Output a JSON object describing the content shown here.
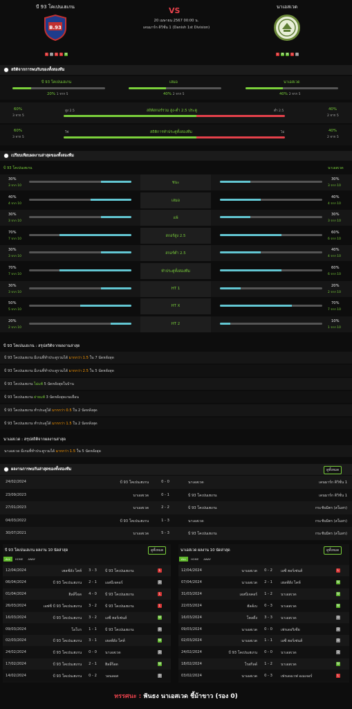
{
  "header": {
    "home": "บี 93 โคเปนเฮเกน",
    "away": "นาเอสเวด",
    "vs": "VS",
    "date": "20 เมษายน 2567 00:00 น.",
    "league": "เดนมาร์ก ดิวิชั่น 1 (Danish 1st Division)",
    "home_form": [
      "L",
      "D",
      "L",
      "L",
      "W"
    ],
    "away_form": [
      "L",
      "W",
      "W",
      "L",
      "D"
    ],
    "home_logo_text": "B.93"
  },
  "stats": {
    "title": "สถิติจากการพบกันของทั้งสองทีม",
    "home_label": "บี 93 โคเปนเฮเกน",
    "draw_label": "เสมอ",
    "away_label": "นาเอสเวด",
    "home_pct": "20%",
    "home_cnt": "1 จาก 5",
    "draw_pct": "40%",
    "draw_cnt": "2 จาก 5",
    "away_pct": "40%",
    "away_cnt": "2 จาก 5",
    "home_fill": 0.2,
    "draw_fill": 0.4,
    "away_fill": 0.4
  },
  "ou": {
    "left_pct": "60%",
    "left_cnt": "3 จาก 5",
    "under": "สูง 2.5",
    "title": "สถิติสกอร์รวม สูง-ต่ำ 2.5 ประตู",
    "over": "ต่ำ 2.5",
    "right_pct": "40%",
    "right_cnt": "2 จาก 5",
    "fill": 0.6
  },
  "btts": {
    "left_pct": "60%",
    "left_cnt": "3 จาก 5",
    "yes": "ใช่",
    "title": "สถิติการทำประตูทั้งสองทีม",
    "no": "ไม่",
    "right_pct": "40%",
    "right_cnt": "2 จาก 5",
    "fill": 0.6
  },
  "compare": {
    "title": "เปรียบเทียบผลงานล่าสุดของทั้งสองทีม",
    "home": "บี 93 โคเปนเฮเกน",
    "away": "นาเอสเวด",
    "rows": [
      {
        "label": "ชนะ",
        "hp": "30%",
        "hc": "3 จาก 10",
        "hf": 0.3,
        "ap": "30%",
        "ac": "3 จาก 10",
        "af": 0.3
      },
      {
        "label": "เสมอ",
        "hp": "40%",
        "hc": "4 จาก 10",
        "hf": 0.4,
        "ap": "40%",
        "ac": "4 จาก 10",
        "af": 0.4
      },
      {
        "label": "แพ้",
        "hp": "30%",
        "hc": "3 จาก 10",
        "hf": 0.3,
        "ap": "30%",
        "ac": "3 จาก 10",
        "af": 0.3
      },
      {
        "label": "สกอร์สูง 2.5",
        "hp": "70%",
        "hc": "7 จาก 10",
        "hf": 0.7,
        "ap": "60%",
        "ac": "6 จาก 10",
        "af": 0.6
      },
      {
        "label": "สกอร์ต่ำ 2.5",
        "hp": "30%",
        "hc": "3 จาก 10",
        "hf": 0.3,
        "ap": "40%",
        "ac": "4 จาก 10",
        "af": 0.4
      },
      {
        "label": "ทำประตูทั้งสองทีม",
        "hp": "70%",
        "hc": "7 จาก 10",
        "hf": 0.7,
        "ap": "60%",
        "ac": "6 จาก 10",
        "af": 0.6
      },
      {
        "label": "HT 1",
        "hp": "30%",
        "hc": "3 จาก 10",
        "hf": 0.3,
        "ap": "20%",
        "ac": "2 จาก 10",
        "af": 0.2
      },
      {
        "label": "HT X",
        "hp": "50%",
        "hc": "5 จาก 10",
        "hf": 0.5,
        "ap": "70%",
        "ac": "7 จาก 10",
        "af": 0.7
      },
      {
        "label": "HT 2",
        "hp": "20%",
        "hc": "2 จาก 10",
        "hf": 0.2,
        "ap": "10%",
        "ac": "1 จาก 10",
        "af": 0.1
      }
    ]
  },
  "home_summary": {
    "title": "บี 93 โคเปนเฮเกน : สรุปสถิติจากผลงานล่าสุด",
    "lines": [
      {
        "pre": "บี 93 โคเปนเฮเกน  มีเกมที่ทำประตูรวมได้ ",
        "hl": "มากกว่า 1.5",
        "post": " ใน 7 นัดหลังสุด",
        "hc": "orange"
      },
      {
        "pre": "บี 93 โคเปนเฮเกน  มีเกมที่ทำประตูรวมได้ ",
        "hl": "มากกว่า 2.5",
        "post": " ใน 5 นัดหลังสุด",
        "hc": "orange"
      },
      {
        "pre": "บี 93 โคเปนเฮเกน  ",
        "hl": "ไม่แพ้",
        "post": " 5 นัดหลังสุดในบ้าน",
        "hc": "green"
      },
      {
        "pre": "บี 93 โคเปนเฮเกน  ",
        "hl": "ผ่ายแพ้",
        "post": " 3 นัดหลังสุดเกมเยือน",
        "hc": "green"
      },
      {
        "pre": "บี 93 โคเปนเฮเกน  ทำประตูได้ ",
        "hl": "มากกว่า 0.5",
        "post": " ใน 2 นัดหลังสุด",
        "hc": "orange"
      },
      {
        "pre": "บี 93 โคเปนเฮเกน  ทำประตูได้ ",
        "hl": "มากกว่า 1.5",
        "post": " ใน 2 นัดหลังสุด",
        "hc": "orange"
      }
    ]
  },
  "away_summary": {
    "title": "นาเอสเวด : สรุปสถิติจากผลงานล่าสุด",
    "lines": [
      {
        "pre": "นาเอสเวด  มีเกมที่ทำประตูรวมได้ ",
        "hl": "มากกว่า 1.5",
        "post": " ใน 5 นัดหลังสุด",
        "hc": "orange"
      }
    ]
  },
  "h2h": {
    "title": "ผลงานการพบกันล่าสุดของทั้งสองทีม",
    "button": "ดูทั้งหมด",
    "rows": [
      {
        "date": "24/02/2024",
        "home": "บี 93 โคเปนเฮเกน",
        "score": "0 - 0",
        "away": "นาเอสเวด",
        "comp": "เดนมาร์ก ดิวิชั่น 1"
      },
      {
        "date": "23/09/2023",
        "home": "นาเอสเวด",
        "score": "0 - 1",
        "away": "บี 93 โคเปนเฮเกน",
        "comp": "เดนมาร์ก ดิวิชั่น 1"
      },
      {
        "date": "27/01/2023",
        "home": "นาเอสเวด",
        "score": "2 - 2",
        "away": "บี 93 โคเปนเฮเกน",
        "comp": "กระชับมิตร (สโมสร)"
      },
      {
        "date": "04/03/2022",
        "home": "บี 93 โคเปนเฮเกน",
        "score": "1 - 3",
        "away": "นาเอสเวด",
        "comp": "กระชับมิตร (สโมสร)"
      },
      {
        "date": "30/07/2021",
        "home": "นาเอสเวด",
        "score": "5 - 3",
        "away": "บี 93 โคเปนเฮเกน",
        "comp": "กระชับมิตร (สโมสร)"
      }
    ]
  },
  "last_home": {
    "title": "บี 93 โคเปนเฮเกน ผลงาน 10 นัดล่าสุด",
    "button": "ดูทั้งหมด",
    "tabs": [
      "ALL",
      "HOME",
      "AWAY"
    ],
    "rows": [
      {
        "date": "12/04/2024",
        "home": "เฮลฟ์ลัง ไคท์",
        "score": "3 - 3",
        "away": "บี 93 โคเปนเฮเกน",
        "r": "L"
      },
      {
        "date": "06/04/2024",
        "home": "บี 93 โคเปนเฮเกน",
        "score": "2 - 1",
        "away": "เอสบีเจคอร์",
        "r": "D"
      },
      {
        "date": "01/04/2024",
        "home": "ฮิลลีร็อด",
        "score": "4 - 0",
        "away": "บี 93 โคเปนเฮเกน",
        "r": "L"
      },
      {
        "date": "26/03/2024",
        "home": "เอฟซี บี 93 โคเปนเฮเกน",
        "score": "3 - 2",
        "away": "บี 93 โคเปนเฮเกน",
        "r": "L"
      },
      {
        "date": "16/03/2024",
        "home": "บี 93 โคเปนเฮเกน",
        "score": "3 - 2",
        "away": "เอซี ฮอร์เซ่นส์",
        "r": "W"
      },
      {
        "date": "09/03/2024",
        "home": "โอโบร",
        "score": "1 - 1",
        "away": "บี 93 โคเปนเฮเกน",
        "r": "D"
      },
      {
        "date": "02/03/2024",
        "home": "บี 93 โคเปนเฮเกน",
        "score": "3 - 1",
        "away": "เฮลฟ์ลัง ไคท์",
        "r": "W"
      },
      {
        "date": "24/02/2024",
        "home": "บี 93 โคเปนเฮเกน",
        "score": "0 - 0",
        "away": "นาเอสเวด",
        "r": "D"
      },
      {
        "date": "17/02/2024",
        "home": "บี 93 โคเปนเฮเกน",
        "score": "2 - 1",
        "away": "ฮิลลีร็อด",
        "r": "W"
      },
      {
        "date": "14/02/2024",
        "home": "บี 93 โคเปนเฮเกน",
        "score": "0 - 2",
        "away": "วอนลอส",
        "r": "D"
      }
    ]
  },
  "last_away": {
    "title": "นาเอสเวด ผลงาน 10 นัดล่าสุด",
    "button": "ดูทั้งหมด",
    "tabs": [
      "ALL",
      "HOME",
      "AWAY"
    ],
    "rows": [
      {
        "date": "12/04/2024",
        "home": "นาเอสเวด",
        "score": "0 - 2",
        "away": "เอซี ฮอร์เซ่นส์",
        "r": "L"
      },
      {
        "date": "07/04/2024",
        "home": "นาเอสเวด",
        "score": "2 - 1",
        "away": "เฮลฟ์ลัง ไคท์",
        "r": "W"
      },
      {
        "date": "31/03/2024",
        "home": "เอสบีเจคอร์",
        "score": "1 - 2",
        "away": "นาเอสเวด",
        "r": "W"
      },
      {
        "date": "22/03/2024",
        "home": "ฮัลด์เบ",
        "score": "0 - 3",
        "away": "นาเอสเวด",
        "r": "W"
      },
      {
        "date": "16/03/2024",
        "home": "โคลดิ้ง",
        "score": "3 - 3",
        "away": "นาเอสเวด",
        "r": "D"
      },
      {
        "date": "09/03/2024",
        "home": "นาเอสเวด",
        "score": "0 - 0",
        "away": "เฟรเดอริเซีย",
        "r": "D"
      },
      {
        "date": "02/03/2024",
        "home": "นาเอสเวด",
        "score": "1 - 1",
        "away": "เอซี ฮอร์เซ่นส์",
        "r": "D"
      },
      {
        "date": "24/02/2024",
        "home": "บี 93 โคเปนเฮเกน",
        "score": "0 - 0",
        "away": "นาเอสเวด",
        "r": "D"
      },
      {
        "date": "18/02/2024",
        "home": "โรสกิลด์",
        "score": "1 - 2",
        "away": "นาเอสเวด",
        "r": "W"
      },
      {
        "date": "03/02/2024",
        "home": "นาเอสเวด",
        "score": "0 - 3",
        "away": "เฟรเดอเวฟ อเมเจอร์",
        "r": "L"
      }
    ]
  },
  "footer": {
    "label": "ทรรศนะ :",
    "text": "ฟันธง นาเอสเวด ชี้ม้าขาว (รอง 0)"
  }
}
